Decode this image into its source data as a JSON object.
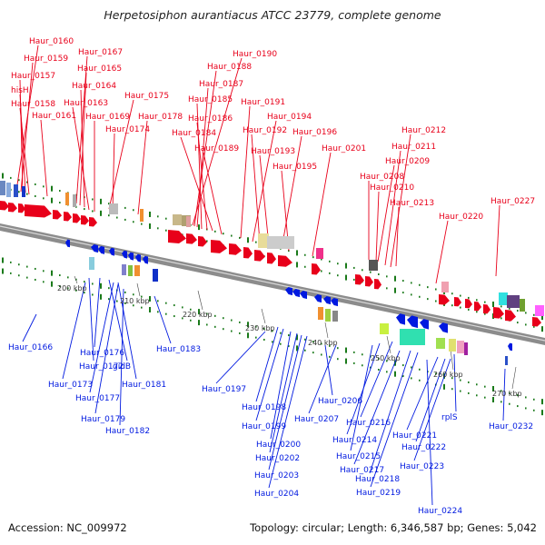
{
  "title": "Herpetosiphon aurantiacus ATCC 23779, complete genome",
  "accession": "Accession: NC_009972",
  "topology": "Topology: circular; Length: 6,346,587 bp; Genes: 5,042",
  "colors": {
    "forward": "#e8001a",
    "reverse": "#0019e0",
    "tick": "#1a7a1a",
    "backbone": "#8c8c8c"
  },
  "scale_ticks": [
    "200 kbp",
    "210 kbp",
    "220 kbp",
    "230 kbp",
    "240 kbp",
    "250 kbp",
    "260 kbp",
    "270 kbp"
  ],
  "forward_genes": [
    "Haur_0160",
    "Haur_0159",
    "Haur_0157",
    "hisH",
    "Haur_0158",
    "Haur_0161",
    "Haur_0167",
    "Haur_0165",
    "Haur_0164",
    "Haur_0163",
    "Haur_0169",
    "Haur_0175",
    "Haur_0174",
    "Haur_0178",
    "Haur_0190",
    "Haur_0188",
    "Haur_0187",
    "Haur_0185",
    "Haur_0186",
    "Haur_0184",
    "Haur_0189",
    "Haur_0191",
    "Haur_0194",
    "Haur_0192",
    "Haur_0193",
    "Haur_0196",
    "Haur_0195",
    "Haur_0201",
    "Haur_0212",
    "Haur_0211",
    "Haur_0209",
    "Haur_0208",
    "Haur_0210",
    "Haur_0213",
    "Haur_0220",
    "Haur_0227"
  ],
  "reverse_genes": [
    "Haur_0166",
    "Haur_0172",
    "Haur_0173",
    "Haur_0176",
    "gidB",
    "Haur_0177",
    "Haur_0181",
    "Haur_0183",
    "Haur_0179",
    "Haur_0182",
    "Haur_0197",
    "Haur_0198",
    "Haur_0199",
    "Haur_0200",
    "Haur_0202",
    "Haur_0203",
    "Haur_0204",
    "Haur_0206",
    "Haur_0207",
    "Haur_0216",
    "Haur_0214",
    "Haur_0215",
    "Haur_0217",
    "Haur_0218",
    "Haur_0219",
    "Haur_0221",
    "Haur_0222",
    "Haur_0223",
    "Haur_0224",
    "rplS",
    "Haur_0232"
  ]
}
